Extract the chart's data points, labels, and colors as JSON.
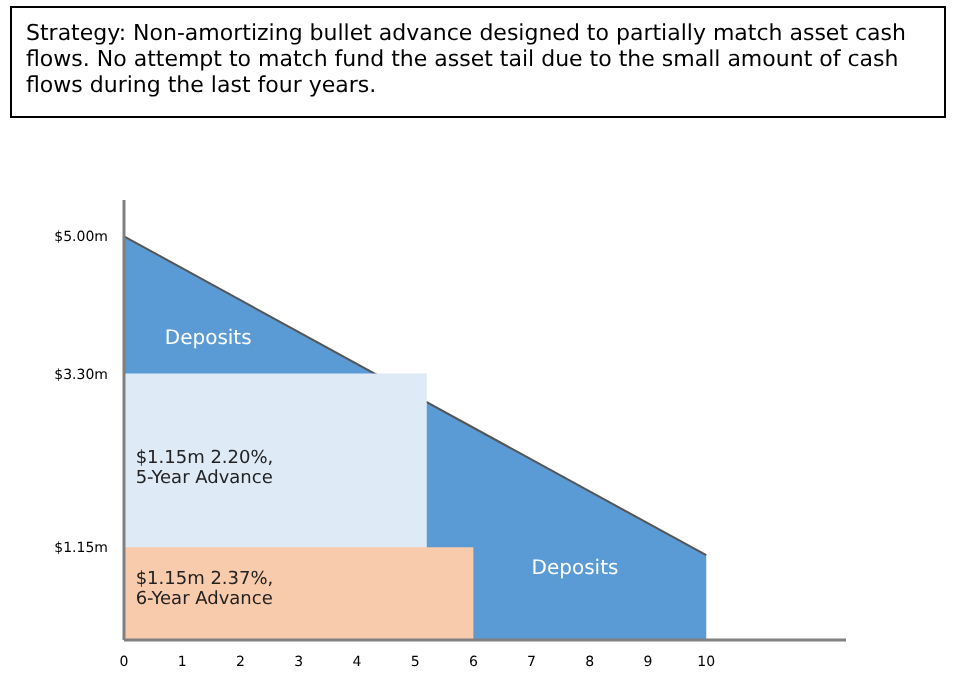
{
  "chart_data": {
    "type": "area",
    "title": "Strategy:  Non-amortizing bullet advance designed to partially match asset cash flows.  No attempt to match fund the asset tail due to the small amount of cash flows during the last four years.",
    "series": [
      {
        "color": "#5b9bd5",
        "x": [
          0,
          10
        ],
        "values": [
          5.0,
          1.05
        ]
      },
      {
        "color": "#deeaf6",
        "x": [
          0,
          5.2
        ],
        "values": [
          3.3,
          3.3
        ]
      },
      {
        "color": "#f8cbad",
        "x": [
          0,
          6
        ],
        "values": [
          1.15,
          1.15
        ]
      }
    ],
    "annotations": [
      "Deposits",
      "$1.15m 2.20%, 5-Year Advance",
      "$1.15m 2.37%, 6-Year Advance",
      "Deposits"
    ],
    "xlim": [
      0,
      12.4
    ],
    "xticks": [
      0,
      1,
      2,
      3,
      4,
      5,
      6,
      7,
      8,
      9,
      10
    ],
    "ylim": [
      0,
      5.45
    ],
    "yticks": [
      {
        "value": 5.0,
        "label": "$5.00m"
      },
      {
        "value": 3.3,
        "label": "$3.30m"
      },
      {
        "value": 1.15,
        "label": "$1.15m"
      }
    ],
    "grid": false,
    "legend": false
  }
}
